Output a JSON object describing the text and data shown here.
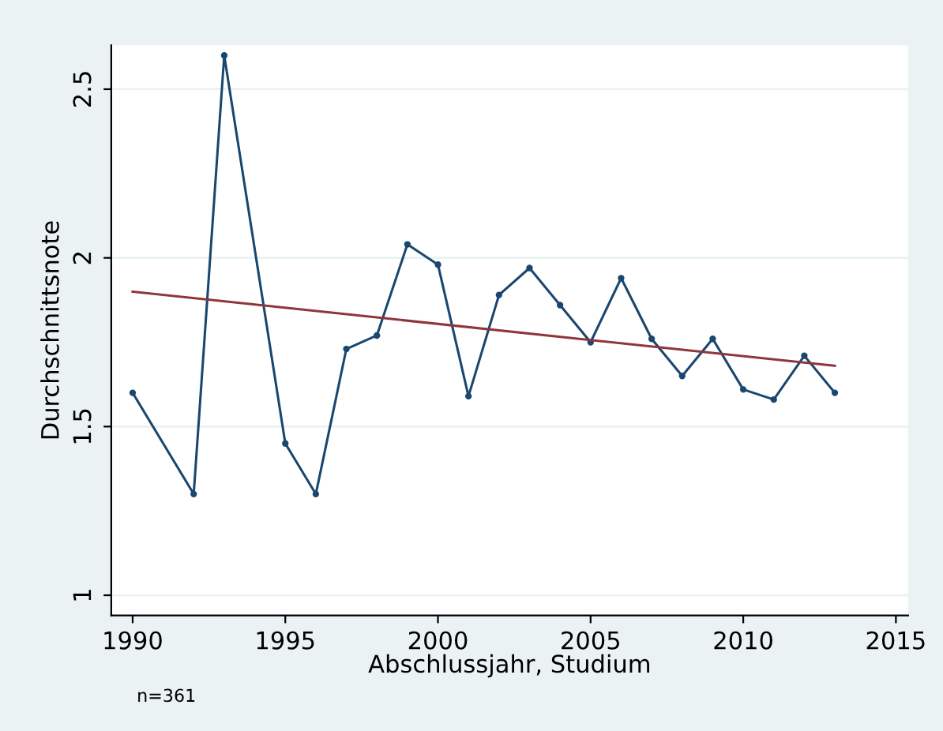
{
  "chart_data": {
    "type": "line",
    "xlabel": "Abschlussjahr, Studium",
    "ylabel": "Durchschnittsnote",
    "x": [
      1990,
      1992,
      1993,
      1995,
      1996,
      1997,
      1998,
      1999,
      2000,
      2001,
      2002,
      2003,
      2004,
      2005,
      2006,
      2007,
      2008,
      2009,
      2010,
      2011,
      2012,
      2013
    ],
    "series": [
      {
        "color": "#1a476f",
        "marker": "circle",
        "values": [
          1.6,
          1.3,
          2.6,
          1.45,
          1.3,
          1.73,
          1.77,
          2.04,
          1.98,
          1.59,
          1.89,
          1.97,
          1.86,
          1.75,
          1.94,
          1.76,
          1.65,
          1.76,
          1.61,
          1.58,
          1.71,
          1.6
        ]
      },
      {
        "color": "#90353b",
        "marker": "none",
        "x": [
          1990,
          2013
        ],
        "values": [
          1.9,
          1.68
        ]
      }
    ],
    "xlim": [
      1989.3,
      2015.4
    ],
    "ylim": [
      0.94,
      2.63
    ],
    "xticks": [
      1990,
      1995,
      2000,
      2005,
      2010,
      2015
    ],
    "yticks": [
      1,
      1.5,
      2,
      2.5
    ],
    "grid": "y",
    "legend": false,
    "annotations": [
      "n=361"
    ]
  }
}
